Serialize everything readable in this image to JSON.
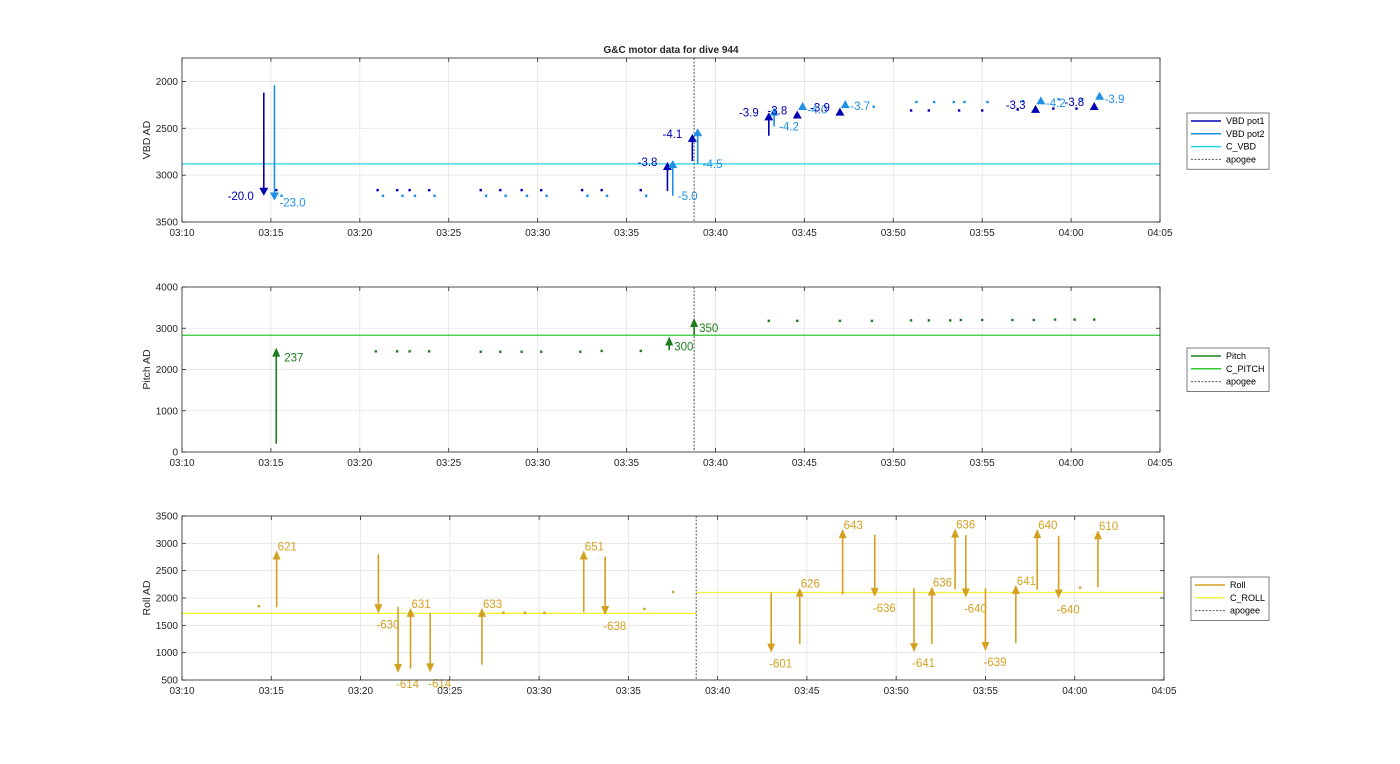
{
  "title": "G&C motor data for dive 944",
  "chart_data": [
    {
      "type": "scatter",
      "id": "vbd",
      "ylabel": "VBD AD",
      "ylim": [
        3500,
        1750
      ],
      "yticks": [
        2000,
        2500,
        3000,
        3500
      ],
      "xlim": [
        "03:10",
        "04:05"
      ],
      "xticks": [
        "03:10",
        "03:15",
        "03:20",
        "03:25",
        "03:30",
        "03:35",
        "03:40",
        "03:45",
        "03:50",
        "03:55",
        "04:00",
        "04:05"
      ],
      "grid": true,
      "legend_position": "outside-right",
      "colors": {
        "pot1": "#0000b4",
        "pot2": "#1e90e6",
        "cline": "#28d2e6",
        "apogee": "#555555"
      },
      "legend": [
        "VBD pot1",
        "VBD pot2",
        "C_VBD",
        "apogee"
      ],
      "hlines": [
        {
          "from": "03:10",
          "to": "04:05",
          "y": 2880,
          "series": "C_VBD"
        }
      ],
      "apogee": "03:38.8",
      "series": [
        {
          "name": "VBD pot1",
          "points": [
            [
              "03:15.3",
              3160
            ],
            [
              "03:21.0",
              3160
            ],
            [
              "03:22.1",
              3160
            ],
            [
              "03:22.8",
              3160
            ],
            [
              "03:23.9",
              3160
            ],
            [
              "03:26.8",
              3160
            ],
            [
              "03:27.9",
              3160
            ],
            [
              "03:29.1",
              3160
            ],
            [
              "03:30.2",
              3160
            ],
            [
              "03:32.5",
              3160
            ],
            [
              "03:33.6",
              3160
            ],
            [
              "03:35.8",
              3160
            ],
            [
              "03:51.0",
              2310
            ],
            [
              "03:52.0",
              2310
            ],
            [
              "03:53.7",
              2310
            ],
            [
              "03:55.0",
              2310
            ],
            [
              "03:57.0",
              2300
            ],
            [
              "03:59.0",
              2290
            ],
            [
              "04:00.3",
              2290
            ]
          ]
        },
        {
          "name": "VBD pot2",
          "points": [
            [
              "03:15.6",
              3220
            ],
            [
              "03:21.3",
              3220
            ],
            [
              "03:22.4",
              3220
            ],
            [
              "03:23.1",
              3220
            ],
            [
              "03:24.2",
              3220
            ],
            [
              "03:27.1",
              3220
            ],
            [
              "03:28.2",
              3220
            ],
            [
              "03:29.4",
              3220
            ],
            [
              "03:30.5",
              3220
            ],
            [
              "03:32.8",
              3220
            ],
            [
              "03:33.9",
              3220
            ],
            [
              "03:36.1",
              3220
            ],
            [
              "03:48.9",
              2270
            ],
            [
              "03:51.3",
              2220
            ],
            [
              "03:52.3",
              2220
            ],
            [
              "03:53.4",
              2220
            ],
            [
              "03:54.0",
              2220
            ],
            [
              "03:55.3",
              2220
            ],
            [
              "03:57.3",
              2210
            ],
            [
              "03:59.3",
              2190
            ],
            [
              "04:00.6",
              2190
            ]
          ]
        }
      ],
      "arrows": [
        {
          "x": "03:14.6",
          "y1": 2120,
          "y2": 3220,
          "series": "VBD pot1",
          "label": "-20.0",
          "label_side": "left"
        },
        {
          "x": "03:15.2",
          "y1": 2040,
          "y2": 3270,
          "series": "VBD pot2",
          "label": "-23.0",
          "label_side": "right-below"
        },
        {
          "x": "03:37.3",
          "y1": 3170,
          "y2": 2860,
          "series": "VBD pot1",
          "label": "-3.8",
          "label_side": "left"
        },
        {
          "x": "03:37.6",
          "y1": 3220,
          "y2": 2840,
          "series": "VBD pot2",
          "label": "-5.0",
          "label_side": "right-below"
        },
        {
          "x": "03:38.7",
          "y1": 2850,
          "y2": 2560,
          "series": "VBD pot1",
          "label": "-4.1",
          "label_side": "left"
        },
        {
          "x": "03:39.0",
          "y1": 2880,
          "y2": 2500,
          "series": "VBD pot2",
          "label": "-4.5",
          "label_side": "right-below"
        },
        {
          "x": "03:43.0",
          "y1": 2580,
          "y2": 2330,
          "series": "VBD pot1",
          "label": "-3.9",
          "label_side": "left"
        },
        {
          "x": "03:43.3",
          "y1": 2480,
          "y2": 2280,
          "series": "VBD pot2",
          "label": "-4.2",
          "label_side": "right-below"
        },
        {
          "x": "03:44.6",
          "y1": 2380,
          "y2": 2310,
          "series": "VBD pot1",
          "label": "-3.8",
          "label_side": "left"
        },
        {
          "x": "03:44.9",
          "y1": 2300,
          "y2": 2220,
          "series": "VBD pot2",
          "label": "-4.0",
          "label_side": "right-below"
        },
        {
          "x": "03:47.0",
          "y1": 2330,
          "y2": 2280,
          "series": "VBD pot1",
          "label": "-3.9",
          "label_side": "left"
        },
        {
          "x": "03:47.3",
          "y1": 2260,
          "y2": 2200,
          "series": "VBD pot2",
          "label": "-3.7",
          "label_side": "right-below"
        },
        {
          "x": "03:58.0",
          "y1": 2310,
          "y2": 2250,
          "series": "VBD pot1",
          "label": "-3.3",
          "label_side": "left"
        },
        {
          "x": "03:58.3",
          "y1": 2230,
          "y2": 2160,
          "series": "VBD pot2",
          "label": "-4.2",
          "label_side": "right-below"
        },
        {
          "x": "04:01.3",
          "y1": 2280,
          "y2": 2220,
          "series": "VBD pot1",
          "label": "-3.8",
          "label_side": "left"
        },
        {
          "x": "04:01.6",
          "y1": 2190,
          "y2": 2110,
          "series": "VBD pot2",
          "label": "-3.9",
          "label_side": "right-below"
        }
      ]
    },
    {
      "type": "scatter",
      "id": "pitch",
      "ylabel": "Pitch AD",
      "ylim": [
        0,
        4000
      ],
      "yticks": [
        0,
        1000,
        2000,
        3000,
        4000
      ],
      "xlim": [
        "03:10",
        "04:05"
      ],
      "xticks": [
        "03:10",
        "03:15",
        "03:20",
        "03:25",
        "03:30",
        "03:35",
        "03:40",
        "03:45",
        "03:50",
        "03:55",
        "04:00",
        "04:05"
      ],
      "grid": true,
      "legend_position": "outside-right",
      "colors": {
        "pitch": "#1e7d1e",
        "cline": "#32c832",
        "apogee": "#555555"
      },
      "legend": [
        "Pitch",
        "C_PITCH",
        "apogee"
      ],
      "hlines": [
        {
          "from": "03:10",
          "to": "04:05",
          "y": 2830,
          "series": "C_PITCH"
        }
      ],
      "apogee": "03:38.8",
      "series": [
        {
          "name": "Pitch",
          "points": [
            [
              "03:20.9",
              2440
            ],
            [
              "03:22.1",
              2440
            ],
            [
              "03:22.8",
              2440
            ],
            [
              "03:23.9",
              2440
            ],
            [
              "03:26.8",
              2430
            ],
            [
              "03:27.9",
              2430
            ],
            [
              "03:29.1",
              2430
            ],
            [
              "03:30.2",
              2430
            ],
            [
              "03:32.4",
              2430
            ],
            [
              "03:33.6",
              2450
            ],
            [
              "03:35.8",
              2450
            ],
            [
              "03:43.0",
              3180
            ],
            [
              "03:44.6",
              3180
            ],
            [
              "03:47.0",
              3180
            ],
            [
              "03:48.8",
              3180
            ],
            [
              "03:51.0",
              3190
            ],
            [
              "03:52.0",
              3190
            ],
            [
              "03:53.2",
              3190
            ],
            [
              "03:53.8",
              3200
            ],
            [
              "03:55.0",
              3200
            ],
            [
              "03:56.7",
              3200
            ],
            [
              "03:57.9",
              3200
            ],
            [
              "03:59.1",
              3210
            ],
            [
              "04:00.2",
              3210
            ],
            [
              "04:01.3",
              3210
            ]
          ]
        }
      ],
      "arrows": [
        {
          "x": "03:15.3",
          "y1": 200,
          "y2": 2530,
          "series": "Pitch",
          "label": "237",
          "label_side": "right"
        },
        {
          "x": "03:37.4",
          "y1": 2470,
          "y2": 2800,
          "series": "Pitch",
          "label": "300",
          "label_side": "right-below"
        },
        {
          "x": "03:38.8",
          "y1": 2830,
          "y2": 3250,
          "series": "Pitch",
          "label": "350",
          "label_side": "right-below"
        }
      ]
    },
    {
      "type": "scatter",
      "id": "roll",
      "ylabel": "Roll AD",
      "ylim": [
        500,
        3500
      ],
      "yticks": [
        500,
        1000,
        1500,
        2000,
        2500,
        3000,
        3500
      ],
      "xlim": [
        "03:10",
        "04:05"
      ],
      "xticks": [
        "03:10",
        "03:15",
        "03:20",
        "03:25",
        "03:30",
        "03:35",
        "03:40",
        "03:45",
        "03:50",
        "03:55",
        "04:00",
        "04:05"
      ],
      "grid": true,
      "legend_position": "outside-right",
      "colors": {
        "roll": "#d4a020",
        "cline": "#f0f040",
        "apogee": "#555555"
      },
      "legend": [
        "Roll",
        "C_ROLL",
        "apogee"
      ],
      "hlines": [
        {
          "from": "03:10",
          "to": "03:38.8",
          "y": 1720,
          "series": "C_ROLL"
        },
        {
          "from": "03:38.8",
          "to": "04:05",
          "y": 2100,
          "series": "C_ROLL"
        }
      ],
      "apogee": "03:38.8",
      "series": [
        {
          "name": "Roll",
          "points": [
            [
              "03:14.3",
              1850
            ],
            [
              "03:28.0",
              1730
            ],
            [
              "03:29.2",
              1730
            ],
            [
              "03:30.3",
              1730
            ],
            [
              "03:35.9",
              1800
            ],
            [
              "03:37.5",
              2110
            ],
            [
              "04:00.3",
              2190
            ]
          ]
        }
      ],
      "arrows": [
        {
          "x": "03:15.3",
          "y1": 1830,
          "y2": 2870,
          "series": "Roll",
          "label": "621",
          "label_side": "right-above"
        },
        {
          "x": "03:21.0",
          "y1": 2800,
          "y2": 1720,
          "series": "Roll",
          "label": "-630",
          "label_side": "below"
        },
        {
          "x": "03:22.1",
          "y1": 1840,
          "y2": 630,
          "series": "Roll",
          "label": "-614",
          "label_side": "below"
        },
        {
          "x": "03:22.8",
          "y1": 710,
          "y2": 1820,
          "series": "Roll",
          "label": "631",
          "label_side": "right-above"
        },
        {
          "x": "03:23.9",
          "y1": 1720,
          "y2": 640,
          "series": "Roll",
          "label": "-614",
          "label_side": "below"
        },
        {
          "x": "03:26.8",
          "y1": 780,
          "y2": 1820,
          "series": "Roll",
          "label": "633",
          "label_side": "right-above"
        },
        {
          "x": "03:32.5",
          "y1": 1740,
          "y2": 2870,
          "series": "Roll",
          "label": "651",
          "label_side": "right-above"
        },
        {
          "x": "03:33.7",
          "y1": 2760,
          "y2": 1690,
          "series": "Roll",
          "label": "-638",
          "label_side": "below"
        },
        {
          "x": "03:43.0",
          "y1": 2100,
          "y2": 1000,
          "series": "Roll",
          "label": "-601",
          "label_side": "below"
        },
        {
          "x": "03:44.6",
          "y1": 1160,
          "y2": 2190,
          "series": "Roll",
          "label": "626",
          "label_side": "right-above"
        },
        {
          "x": "03:47.0",
          "y1": 2060,
          "y2": 3260,
          "series": "Roll",
          "label": "643",
          "label_side": "right-above"
        },
        {
          "x": "03:48.8",
          "y1": 3160,
          "y2": 2020,
          "series": "Roll",
          "label": "-636",
          "label_side": "below"
        },
        {
          "x": "03:51.0",
          "y1": 2180,
          "y2": 1010,
          "series": "Roll",
          "label": "-641",
          "label_side": "below"
        },
        {
          "x": "03:52.0",
          "y1": 1160,
          "y2": 2210,
          "series": "Roll",
          "label": "636",
          "label_side": "right-above"
        },
        {
          "x": "03:53.3",
          "y1": 2160,
          "y2": 3270,
          "series": "Roll",
          "label": "636",
          "label_side": "right-above"
        },
        {
          "x": "03:53.9",
          "y1": 3150,
          "y2": 2010,
          "series": "Roll",
          "label": "-640",
          "label_side": "below"
        },
        {
          "x": "03:55.0",
          "y1": 2180,
          "y2": 1030,
          "series": "Roll",
          "label": "-639",
          "label_side": "below"
        },
        {
          "x": "03:56.7",
          "y1": 1170,
          "y2": 2240,
          "series": "Roll",
          "label": "641",
          "label_side": "right-above"
        },
        {
          "x": "03:57.9",
          "y1": 2150,
          "y2": 3260,
          "series": "Roll",
          "label": "640",
          "label_side": "right-above"
        },
        {
          "x": "03:59.1",
          "y1": 3140,
          "y2": 1990,
          "series": "Roll",
          "label": "-640",
          "label_side": "below"
        },
        {
          "x": "04:01.3",
          "y1": 2200,
          "y2": 3240,
          "series": "Roll",
          "label": "610",
          "label_side": "right-above"
        }
      ]
    }
  ]
}
